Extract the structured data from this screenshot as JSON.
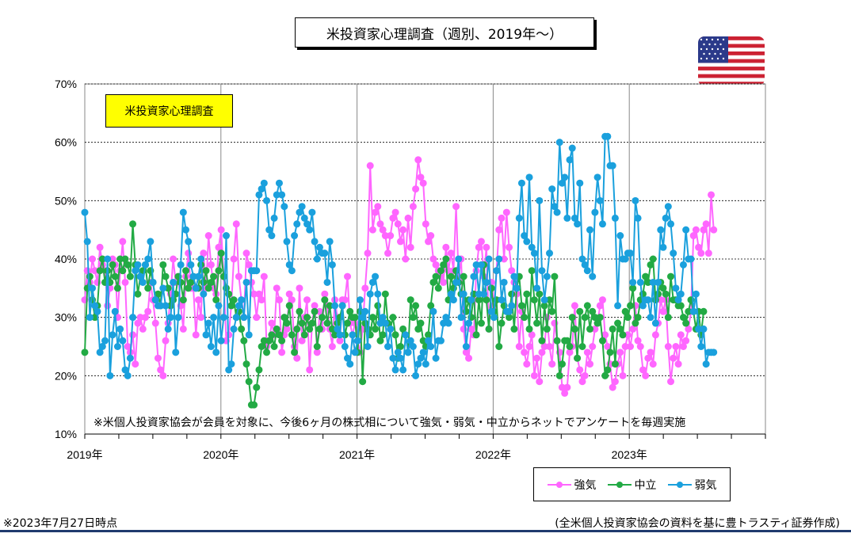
{
  "title": "米投資家心理調査（週別、2019年～）",
  "inner_label": "米投資家心理調査",
  "note": "※米個人投資家協会が会員を対象に、今後6ヶ月の株式相について強気・弱気・中立からネットでアンケートを毎週実施",
  "footer_left": "※2023年7月27日時点",
  "footer_right": "(全米個人投資家協会の資料を基に豊トラスティ証券作成)",
  "flag_icon": "us-flag-icon",
  "chart_data": {
    "type": "line",
    "x_labels": [
      "2019年",
      "2020年",
      "2021年",
      "2022年",
      "2023年"
    ],
    "x_range": [
      "2019-01",
      "2024-01"
    ],
    "y_ticks": [
      "10%",
      "20%",
      "30%",
      "40%",
      "50%",
      "60%",
      "70%"
    ],
    "ylim": [
      10,
      70
    ],
    "grid": true,
    "legend_position": "bottom-right",
    "series": [
      {
        "name": "強気",
        "color": "#ff66ff",
        "values": [
          33,
          38,
          36,
          40,
          38,
          36,
          42,
          39,
          38,
          32,
          35,
          40,
          39,
          30,
          38,
          43,
          36,
          25,
          24,
          27,
          22,
          29,
          30,
          28,
          30,
          31,
          36,
          33,
          29,
          23,
          21,
          20,
          26,
          29,
          34,
          40,
          36,
          37,
          32,
          28,
          37,
          41,
          35,
          35,
          27,
          33,
          30,
          41,
          35,
          44,
          39,
          35,
          34,
          42,
          45,
          37,
          26,
          27,
          32,
          40,
          46,
          37,
          33,
          30,
          41,
          39,
          36,
          34,
          30,
          34,
          33,
          37,
          25,
          26,
          29,
          27,
          35,
          33,
          24,
          27,
          28,
          34,
          33,
          25,
          23,
          35,
          26,
          30,
          33,
          21,
          29,
          32,
          24,
          31,
          28,
          34,
          32,
          28,
          25,
          33,
          30,
          26,
          33,
          33,
          37,
          29,
          27,
          29,
          26,
          24,
          28,
          35,
          41,
          56,
          45,
          48,
          49,
          46,
          45,
          44,
          41,
          44,
          47,
          48,
          46,
          43,
          45,
          40,
          47,
          42,
          49,
          52,
          57,
          54,
          53,
          46,
          43,
          44,
          40,
          39,
          38,
          37,
          36,
          42,
          38,
          41,
          38,
          49,
          37,
          40,
          28,
          24,
          23,
          28,
          27,
          38,
          42,
          43,
          37,
          42,
          28,
          36,
          32,
          38,
          45,
          47,
          40,
          48,
          42,
          38,
          36,
          34,
          25,
          31,
          24,
          22,
          25,
          27,
          20,
          23,
          19,
          24,
          25,
          30,
          25,
          22,
          29,
          26,
          24,
          18,
          17,
          18,
          24,
          25,
          32,
          23,
          21,
          19,
          20,
          24,
          22,
          25,
          28,
          29,
          32,
          33,
          27,
          25,
          22,
          18,
          19,
          22,
          24,
          20,
          25,
          27,
          25,
          28,
          32,
          26,
          25,
          21,
          20,
          23,
          24,
          22,
          27,
          29,
          33,
          31,
          33,
          25,
          19,
          23,
          25,
          22,
          27,
          25,
          26,
          28,
          31,
          44,
          45,
          42,
          41,
          45,
          46,
          41,
          51,
          45
        ]
      },
      {
        "name": "中立",
        "color": "#22aa44",
        "values": [
          24,
          35,
          37,
          33,
          30,
          32,
          38,
          40,
          36,
          38,
          36,
          39,
          37,
          35,
          40,
          38,
          40,
          39,
          37,
          46,
          39,
          34,
          37,
          38,
          39,
          35,
          38,
          36,
          33,
          34,
          32,
          39,
          37,
          35,
          32,
          33,
          34,
          37,
          36,
          33,
          38,
          35,
          36,
          37,
          35,
          35,
          39,
          36,
          38,
          35,
          36,
          37,
          33,
          38,
          41,
          37,
          35,
          34,
          32,
          33,
          30,
          31,
          28,
          26,
          22,
          19,
          15,
          15,
          18,
          21,
          25,
          26,
          24,
          26,
          27,
          25,
          28,
          27,
          26,
          30,
          29,
          32,
          27,
          24,
          28,
          31,
          29,
          27,
          30,
          28,
          29,
          31,
          25,
          28,
          30,
          33,
          29,
          32,
          28,
          27,
          29,
          30,
          32,
          27,
          29,
          31,
          30,
          30,
          24,
          31,
          19,
          29,
          28,
          27,
          30,
          28,
          32,
          26,
          27,
          34,
          29,
          28,
          30,
          27,
          23,
          25,
          28,
          27,
          24,
          33,
          30,
          32,
          28,
          29,
          26,
          25,
          27,
          32,
          36,
          37,
          35,
          38,
          39,
          40,
          33,
          37,
          35,
          38,
          36,
          34,
          37,
          31,
          33,
          30,
          34,
          27,
          33,
          29,
          39,
          33,
          28,
          35,
          31,
          33,
          25,
          29,
          32,
          31,
          30,
          34,
          28,
          35,
          37,
          32,
          30,
          34,
          28,
          38,
          33,
          29,
          34,
          26,
          32,
          28,
          33,
          31,
          37,
          26,
          20,
          22,
          26,
          26,
          25,
          30,
          28,
          23,
          31,
          25,
          30,
          32,
          28,
          31,
          30,
          29,
          30,
          26,
          20,
          21,
          24,
          28,
          22,
          29,
          28,
          27,
          31,
          30,
          32,
          35,
          29,
          30,
          33,
          34,
          37,
          36,
          39,
          40,
          33,
          34,
          36,
          35,
          34,
          30,
          37,
          33,
          33,
          32,
          32,
          30,
          29,
          31,
          33,
          31,
          28,
          31,
          27,
          31
        ]
      },
      {
        "name": "弱気",
        "color": "#1aa0dd",
        "values": [
          48,
          43,
          30,
          35,
          32,
          31,
          24,
          25,
          26,
          40,
          20,
          27,
          31,
          25,
          28,
          26,
          21,
          20,
          23,
          30,
          38,
          39,
          37,
          36,
          39,
          40,
          43,
          36,
          33,
          32,
          32,
          35,
          32,
          28,
          30,
          36,
          24,
          30,
          39,
          48,
          45,
          43,
          39,
          37,
          35,
          37,
          40,
          34,
          27,
          29,
          25,
          30,
          24,
          32,
          26,
          30,
          44,
          21,
          22,
          28,
          30,
          32,
          33,
          30,
          36,
          27,
          38,
          38,
          38,
          51,
          52,
          53,
          50,
          45,
          44,
          47,
          51,
          53,
          51,
          49,
          43,
          39,
          38,
          44,
          46,
          48,
          49,
          47,
          46,
          45,
          48,
          43,
          40,
          42,
          41,
          41,
          36,
          43,
          39,
          32,
          28,
          27,
          32,
          25,
          23,
          22,
          27,
          24,
          26,
          33,
          30,
          31,
          25,
          34,
          36,
          37,
          34,
          29,
          30,
          29,
          25,
          28,
          23,
          21,
          24,
          23,
          21,
          27,
          24,
          26,
          25,
          20,
          22,
          23,
          24,
          22,
          26,
          25,
          31,
          23,
          26,
          26,
          29,
          30,
          29,
          34,
          33,
          36,
          40,
          30,
          34,
          25,
          29,
          33,
          37,
          39,
          34,
          39,
          34,
          36,
          40,
          31,
          30,
          38,
          40,
          33,
          36,
          31,
          31,
          32,
          37,
          35,
          47,
          53,
          44,
          43,
          54,
          42,
          41,
          35,
          50,
          38,
          33,
          37,
          41,
          52,
          49,
          48,
          60,
          53,
          54,
          47,
          57,
          59,
          47,
          46,
          53,
          40,
          39,
          38,
          45,
          37,
          48,
          54,
          50,
          46,
          61,
          61,
          56,
          56,
          47,
          32,
          44,
          40,
          40,
          41,
          41,
          36,
          50,
          47,
          36,
          32,
          33,
          33,
          30,
          36,
          29,
          36,
          45,
          42,
          47,
          49,
          46,
          41,
          35,
          33,
          34,
          39,
          45,
          40,
          40,
          31,
          34,
          28,
          25,
          28,
          22,
          24,
          24,
          24
        ]
      }
    ]
  }
}
